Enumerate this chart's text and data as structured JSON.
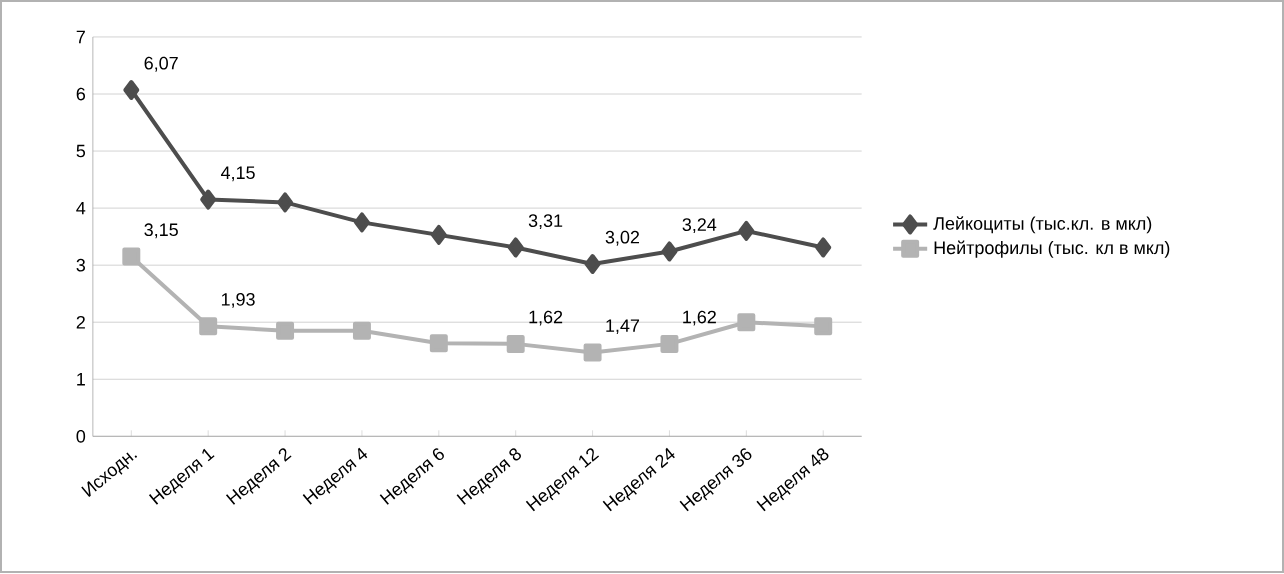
{
  "chart_data": {
    "type": "line",
    "categories": [
      "Исходн.",
      "Неделя 1",
      "Неделя 2",
      "Неделя 4",
      "Неделя 6",
      "Неделя 8",
      "Неделя 12",
      "Неделя 24",
      "Неделя 36",
      "Неделя 48"
    ],
    "series": [
      {
        "name": "Лейкоциты (тыс.кл. в мкл)",
        "color": "#4d4d4d",
        "marker": "diamond",
        "values": [
          6.07,
          4.15,
          4.1,
          3.75,
          3.53,
          3.31,
          3.02,
          3.24,
          3.6,
          3.31
        ],
        "value_labels": [
          "6,07",
          "4,15",
          null,
          null,
          null,
          "3,31",
          "3,02",
          "3,24",
          null,
          null
        ]
      },
      {
        "name": "Нейтрофилы (тыс. кл в мкл)",
        "color": "#b3b3b3",
        "marker": "square",
        "values": [
          3.15,
          1.93,
          1.85,
          1.85,
          1.63,
          1.62,
          1.47,
          1.62,
          2.0,
          1.93
        ],
        "value_labels": [
          "3,15",
          "1,93",
          null,
          null,
          null,
          "1,62",
          "1,47",
          "1,62",
          null,
          null
        ]
      }
    ],
    "ylim": [
      0,
      7
    ],
    "yticks": [
      0,
      1,
      2,
      3,
      4,
      5,
      6,
      7
    ],
    "grid": "y",
    "legend": "right",
    "line_style": "solid"
  }
}
